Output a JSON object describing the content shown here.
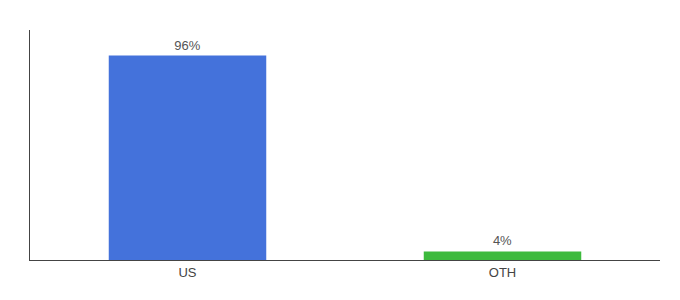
{
  "chart_data": {
    "type": "bar",
    "categories": [
      "US",
      "OTH"
    ],
    "values": [
      96,
      4
    ],
    "value_labels": [
      "96%",
      "4%"
    ],
    "colors": [
      "#4472db",
      "#3dba3d"
    ],
    "ylim": [
      0,
      108
    ],
    "yticks": [],
    "grid": false,
    "tick_labels": "x",
    "data_labels": true
  }
}
